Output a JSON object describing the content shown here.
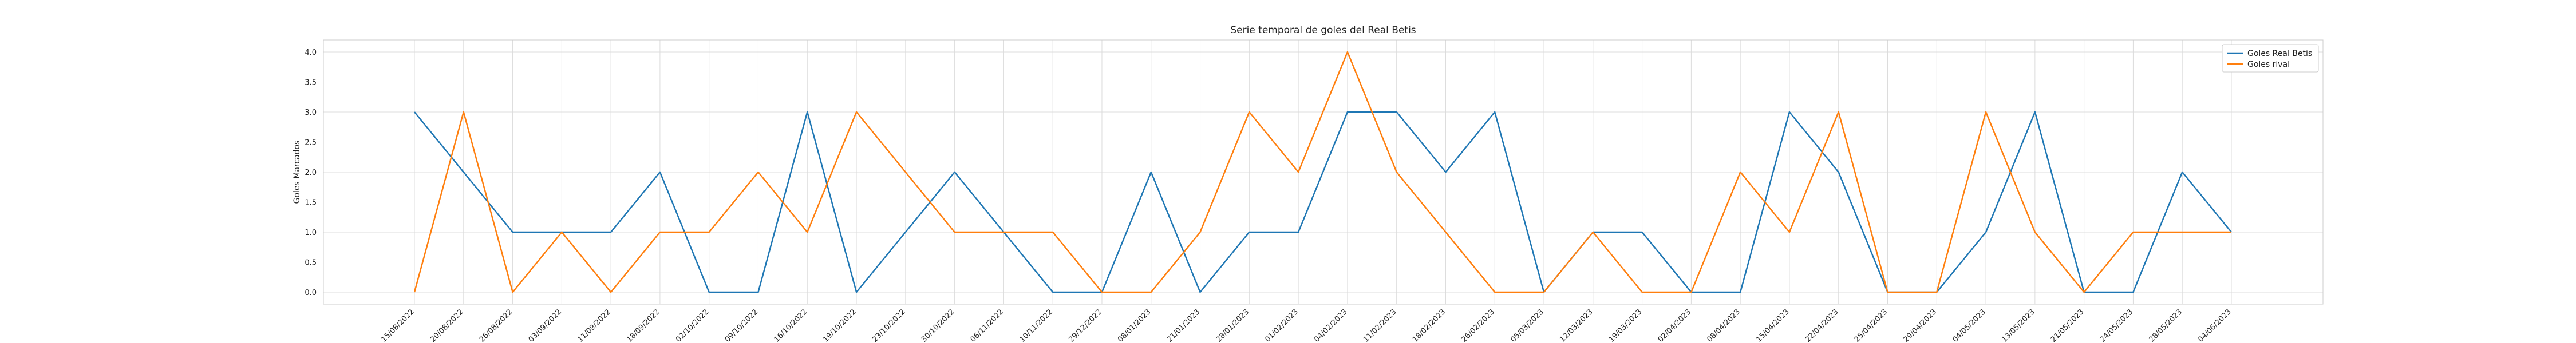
{
  "chart_data": {
    "type": "line",
    "title": "Serie temporal de goles del Real Betis",
    "xlabel": "",
    "ylabel": "Goles Marcados",
    "ylim": [
      -0.2,
      4.2
    ],
    "yticks": [
      "0.0",
      "0.5",
      "1.0",
      "1.5",
      "2.0",
      "2.5",
      "3.0",
      "3.5",
      "4.0"
    ],
    "grid": true,
    "legend_position": "top-right",
    "x": [
      "15/08/2022",
      "20/08/2022",
      "26/08/2022",
      "03/09/2022",
      "11/09/2022",
      "18/09/2022",
      "02/10/2022",
      "09/10/2022",
      "16/10/2022",
      "19/10/2022",
      "23/10/2022",
      "30/10/2022",
      "06/11/2022",
      "10/11/2022",
      "29/12/2022",
      "08/01/2023",
      "21/01/2023",
      "28/01/2023",
      "01/02/2023",
      "04/02/2023",
      "11/02/2023",
      "18/02/2023",
      "26/02/2023",
      "05/03/2023",
      "12/03/2023",
      "19/03/2023",
      "02/04/2023",
      "08/04/2023",
      "15/04/2023",
      "22/04/2023",
      "25/04/2023",
      "29/04/2023",
      "04/05/2023",
      "13/05/2023",
      "21/05/2023",
      "24/05/2023",
      "28/05/2023",
      "04/06/2023"
    ],
    "series": [
      {
        "name": "Goles Real Betis",
        "color": "#1f77b4",
        "values": [
          3,
          2,
          1,
          1,
          1,
          2,
          0,
          0,
          3,
          0,
          1,
          2,
          1,
          0,
          0,
          2,
          0,
          1,
          1,
          3,
          3,
          2,
          3,
          0,
          1,
          1,
          0,
          0,
          3,
          2,
          0,
          0,
          1,
          3,
          0,
          0,
          2,
          1
        ]
      },
      {
        "name": "Goles rival",
        "color": "#ff7f0e",
        "values": [
          0,
          3,
          0,
          1,
          0,
          1,
          1,
          2,
          1,
          3,
          2,
          1,
          1,
          1,
          0,
          0,
          1,
          3,
          2,
          4,
          2,
          1,
          0,
          0,
          1,
          0,
          0,
          2,
          1,
          3,
          0,
          0,
          3,
          1,
          0,
          1,
          1,
          1
        ]
      }
    ]
  }
}
